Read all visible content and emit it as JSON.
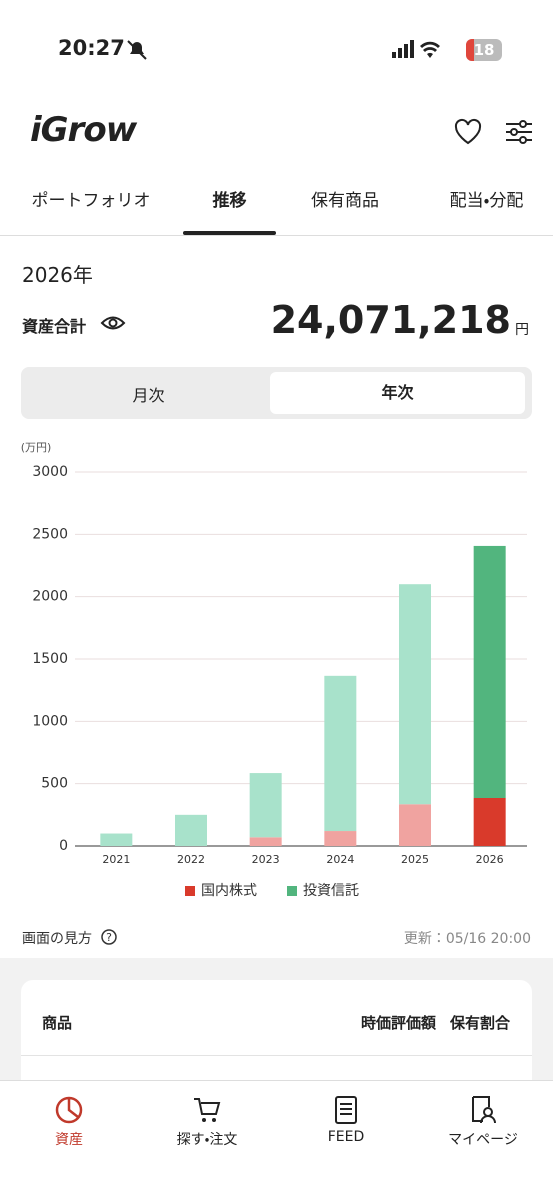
{
  "status_bar": {
    "time": "20:27",
    "battery": "18"
  },
  "header": {
    "logo": "iGrow"
  },
  "tabs": [
    "ポートフォリオ",
    "推移",
    "保有商品",
    "配当・分配"
  ],
  "summary": {
    "year": "2026年",
    "label": "資産合計",
    "amount": "24,071,218",
    "unit": "円"
  },
  "segment": [
    "月次",
    "年次"
  ],
  "chart_data": {
    "type": "stacked_bar",
    "y_unit_label": "(万円)",
    "categories": [
      "2021",
      "2022",
      "2023",
      "2024",
      "2025",
      "2026"
    ],
    "series": [
      {
        "name": "国内株式",
        "color": "#d93a2b",
        "light_color": "#f0a3a0",
        "values": [
          0,
          0,
          70,
          120,
          335,
          385
        ]
      },
      {
        "name": "投資信託",
        "color": "#52b57e",
        "light_color": "#a8e2cb",
        "values": [
          100,
          250,
          515,
          1245,
          1765,
          2022
        ]
      }
    ],
    "ylim": [
      0,
      3000
    ],
    "yticks": [
      0,
      500,
      1000,
      1500,
      2000,
      2500,
      3000
    ],
    "grid": true,
    "legend": "bottom"
  },
  "footer": {
    "help": "画面の見方",
    "updated": "更新：05/16 20:00"
  },
  "table": {
    "headers": [
      "商品",
      "時価評価額",
      "保有割合"
    ]
  },
  "nav": [
    "資産",
    "探す・注文",
    "FEED",
    "マイページ"
  ]
}
